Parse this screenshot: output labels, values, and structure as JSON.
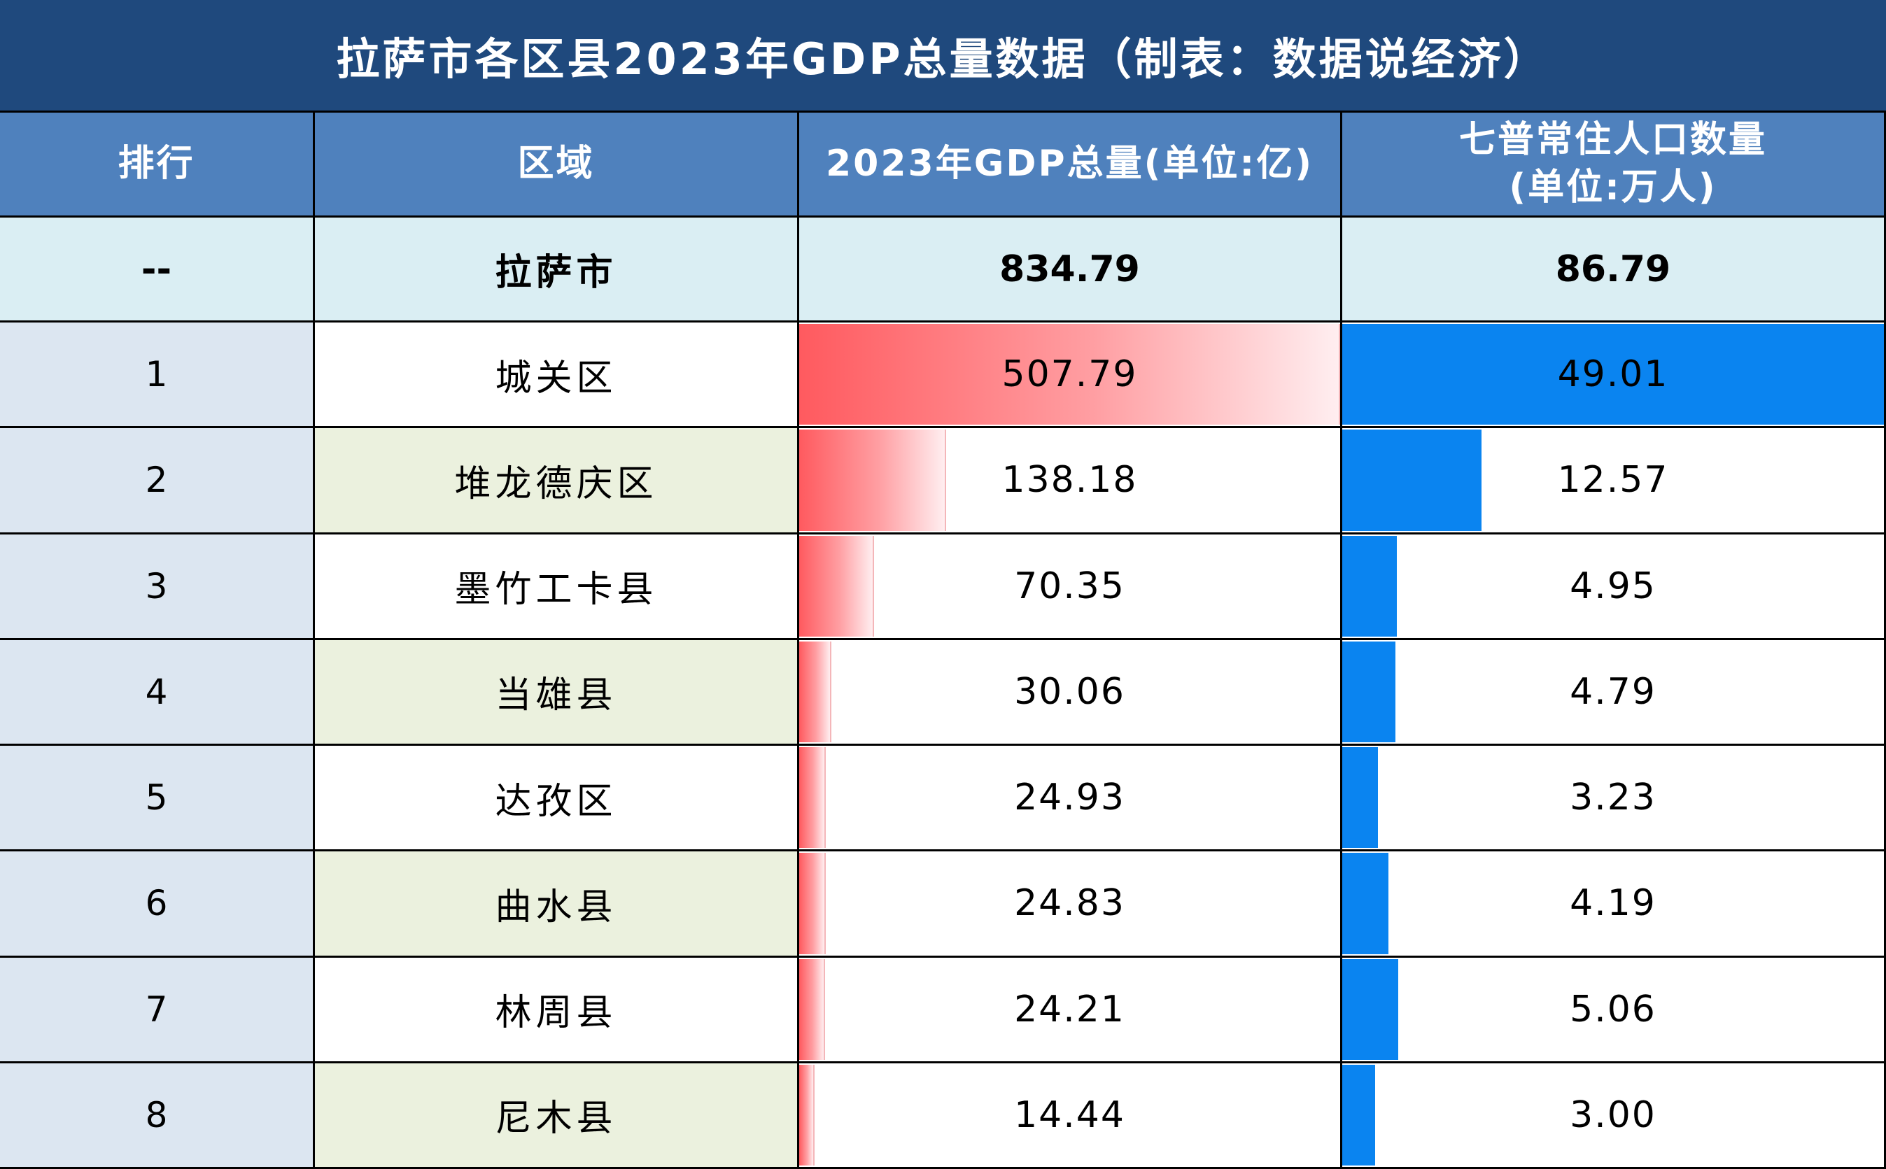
{
  "title": "拉萨市各区县2023年GDP总量数据（制表：数据说经济）",
  "chart_data": {
    "type": "table",
    "columns": [
      "排行",
      "区域",
      "2023年GDP总量(单位:亿)",
      "七普常住人口数量(单位:万人)"
    ],
    "header_lines": {
      "rank": "排行",
      "region": "区域",
      "gdp": "2023年GDP总量(单位:亿)",
      "pop_line1": "七普常住人口数量",
      "pop_line2": "(单位:万人)"
    },
    "total": {
      "rank": "--",
      "region": "拉萨市",
      "gdp": "834.79",
      "pop": "86.79"
    },
    "rows": [
      {
        "rank": "1",
        "region": "城关区",
        "gdp": "507.79",
        "pop": "49.01"
      },
      {
        "rank": "2",
        "region": "堆龙德庆区",
        "gdp": "138.18",
        "pop": "12.57"
      },
      {
        "rank": "3",
        "region": "墨竹工卡县",
        "gdp": "70.35",
        "pop": "4.95"
      },
      {
        "rank": "4",
        "region": "当雄县",
        "gdp": "30.06",
        "pop": "4.79"
      },
      {
        "rank": "5",
        "region": "达孜区",
        "gdp": "24.93",
        "pop": "3.23"
      },
      {
        "rank": "6",
        "region": "曲水县",
        "gdp": "24.83",
        "pop": "4.19"
      },
      {
        "rank": "7",
        "region": "林周县",
        "gdp": "24.21",
        "pop": "5.06"
      },
      {
        "rank": "8",
        "region": "尼木县",
        "gdp": "14.44",
        "pop": "3.00"
      }
    ],
    "bar_max": {
      "gdp": 507.79,
      "pop": 49.01
    }
  },
  "colors": {
    "title_bg": "#1f497d",
    "header_bg": "#4f81bd",
    "total_bg": "#daeef3",
    "rank_bg": "#dce6f1",
    "region_alt_bg": "#ebf1de",
    "gdp_bar": "#ff5a5f",
    "pop_bar": "#0a84f0"
  }
}
